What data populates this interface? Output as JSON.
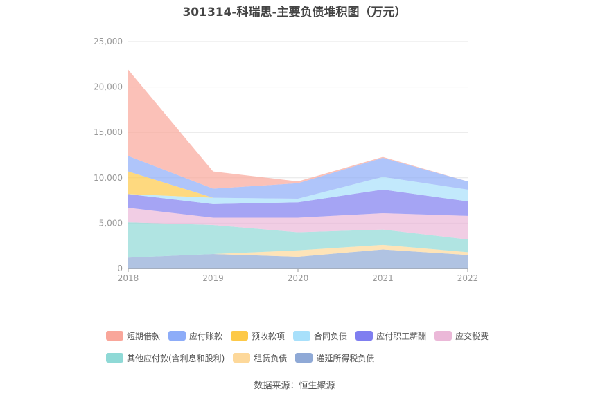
{
  "chart_data": {
    "type": "area",
    "stacked": true,
    "title": "301314-科瑞思-主要负债堆积图（万元）",
    "x": [
      "2018",
      "2019",
      "2020",
      "2021",
      "2022"
    ],
    "ylim": [
      0,
      25000
    ],
    "yticks": [
      0,
      5000,
      10000,
      15000,
      20000,
      25000
    ],
    "ytick_labels": [
      "0",
      "5,000",
      "10,000",
      "15,000",
      "20,000",
      "25,000"
    ],
    "grid": true,
    "legend_position": "bottom",
    "series": [
      {
        "name": "递延所得税负债",
        "color": "#8fa9d6",
        "values": [
          1200,
          1600,
          1300,
          2100,
          1500
        ]
      },
      {
        "name": "租赁负债",
        "color": "#fdd89a",
        "values": [
          0,
          0,
          700,
          500,
          300
        ]
      },
      {
        "name": "其他应付款(含利息和股利)",
        "color": "#8fd9d6",
        "values": [
          3900,
          3200,
          2000,
          1700,
          1400
        ]
      },
      {
        "name": "应交税费",
        "color": "#ebb8d8",
        "values": [
          1600,
          800,
          1600,
          1800,
          2600
        ]
      },
      {
        "name": "应付职工薪酬",
        "color": "#7f7ef0",
        "values": [
          1500,
          1500,
          1700,
          2600,
          1600
        ]
      },
      {
        "name": "合同负债",
        "color": "#a8e0fb",
        "values": [
          0,
          700,
          400,
          1400,
          1300
        ]
      },
      {
        "name": "预收款项",
        "color": "#fdc948",
        "values": [
          2500,
          0,
          0,
          0,
          0
        ]
      },
      {
        "name": "应付账款",
        "color": "#8dacf8",
        "values": [
          1700,
          1000,
          1700,
          2100,
          900
        ]
      },
      {
        "name": "短期借款",
        "color": "#f9a69a",
        "values": [
          9500,
          1900,
          200,
          100,
          0
        ]
      }
    ]
  },
  "legend": {
    "rows": [
      [
        {
          "label": "短期借款",
          "color": "#f9a69a"
        },
        {
          "label": "应付账款",
          "color": "#8dacf8"
        },
        {
          "label": "预收款项",
          "color": "#fdc948"
        },
        {
          "label": "合同负债",
          "color": "#a8e0fb"
        },
        {
          "label": "应付职工薪酬",
          "color": "#7f7ef0"
        },
        {
          "label": "应交税费",
          "color": "#ebb8d8"
        }
      ],
      [
        {
          "label": "其他应付款(含利息和股利)",
          "color": "#8fd9d6"
        },
        {
          "label": "租赁负债",
          "color": "#fdd89a"
        },
        {
          "label": "递延所得税负债",
          "color": "#8fa9d6"
        }
      ]
    ]
  },
  "footer": {
    "source": "数据来源：恒生聚源"
  }
}
